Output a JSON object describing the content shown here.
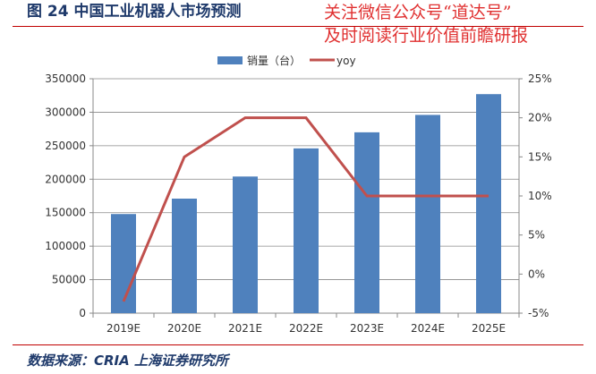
{
  "title": "图 24 中国工业机器人市场预测",
  "watermark": [
    "关注微信公众号“道达号”",
    "及时阅读行业价值前瞻研报"
  ],
  "source": "数据来源：CRIA 上海证券研究所",
  "chart_data": {
    "type": "bar+line",
    "categories": [
      "2019E",
      "2020E",
      "2021E",
      "2022E",
      "2023E",
      "2024E",
      "2025E"
    ],
    "series": [
      {
        "name": "销量（台）",
        "type": "bar",
        "axis": "left",
        "color": "#4f81bd",
        "values": [
          148000,
          171000,
          204000,
          246000,
          270000,
          296000,
          327000
        ]
      },
      {
        "name": "yoy",
        "type": "line",
        "axis": "right",
        "color": "#c0504d",
        "values": [
          -3.5,
          15,
          20,
          20,
          10,
          10,
          10
        ]
      }
    ],
    "y_left": {
      "range": [
        0,
        350000
      ],
      "ticks": [
        0,
        50000,
        100000,
        150000,
        200000,
        250000,
        300000,
        350000
      ]
    },
    "y_right": {
      "range": [
        -5,
        25
      ],
      "ticks": [
        "-5%",
        "0%",
        "5%",
        "10%",
        "15%",
        "20%",
        "25%"
      ]
    },
    "grid": true,
    "legend": "top"
  }
}
